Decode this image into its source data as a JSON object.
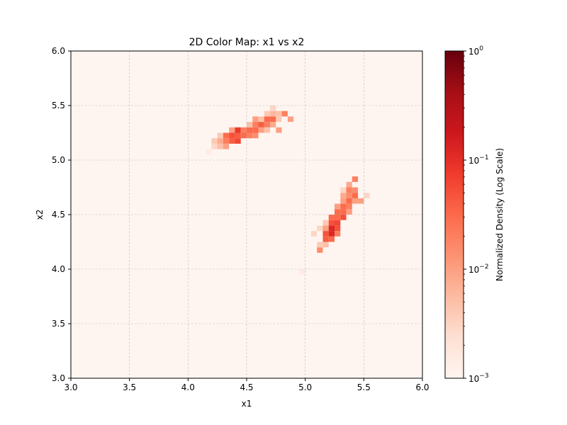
{
  "chart_data": {
    "type": "heatmap",
    "title": "2D Color Map: x1 vs x2",
    "xlabel": "x1",
    "ylabel": "x2",
    "xlim": [
      3.0,
      6.0
    ],
    "ylim": [
      3.0,
      6.0
    ],
    "x_ticks": [
      "3.0",
      "3.5",
      "4.0",
      "4.5",
      "5.0",
      "5.5",
      "6.0"
    ],
    "y_ticks": [
      "3.0",
      "3.5",
      "4.0",
      "4.5",
      "5.0",
      "5.5",
      "6.0"
    ],
    "grid": true,
    "bin_size": 0.05,
    "colormap": "Reds",
    "colorbar": {
      "label": "Normalized Density (Log Scale)",
      "scale": "log",
      "range": [
        0.001,
        1
      ],
      "tick_values": [
        0.001,
        0.01,
        0.1,
        1
      ],
      "tick_labels": [
        {
          "base": "10",
          "exp": "−3"
        },
        {
          "base": "10",
          "exp": "−2"
        },
        {
          "base": "10",
          "exp": "−1"
        },
        {
          "base": "10",
          "exp": "0"
        }
      ]
    },
    "cells": [
      [
        4.15,
        5.05,
        0.0015
      ],
      [
        4.2,
        5.1,
        0.003
      ],
      [
        4.2,
        5.15,
        0.004
      ],
      [
        4.25,
        5.1,
        0.005
      ],
      [
        4.25,
        5.15,
        0.008
      ],
      [
        4.25,
        5.2,
        0.004
      ],
      [
        4.3,
        5.1,
        0.01
      ],
      [
        4.3,
        5.15,
        0.02
      ],
      [
        4.3,
        5.2,
        0.03
      ],
      [
        4.35,
        5.15,
        0.04
      ],
      [
        4.35,
        5.2,
        0.05
      ],
      [
        4.35,
        5.25,
        0.01
      ],
      [
        4.4,
        5.15,
        0.06
      ],
      [
        4.4,
        5.2,
        0.04
      ],
      [
        4.4,
        5.25,
        0.08
      ],
      [
        4.45,
        5.2,
        0.03
      ],
      [
        4.45,
        5.25,
        0.02
      ],
      [
        4.5,
        5.2,
        0.02
      ],
      [
        4.5,
        5.25,
        0.03
      ],
      [
        4.5,
        5.3,
        0.005
      ],
      [
        4.55,
        5.2,
        0.015
      ],
      [
        4.55,
        5.25,
        0.03
      ],
      [
        4.55,
        5.3,
        0.02
      ],
      [
        4.55,
        5.35,
        0.01
      ],
      [
        4.6,
        5.25,
        0.01
      ],
      [
        4.6,
        5.3,
        0.04
      ],
      [
        4.6,
        5.35,
        0.005
      ],
      [
        4.65,
        5.25,
        0.005
      ],
      [
        4.65,
        5.3,
        0.02
      ],
      [
        4.65,
        5.35,
        0.03
      ],
      [
        4.65,
        5.4,
        0.004
      ],
      [
        4.7,
        5.3,
        0.008
      ],
      [
        4.7,
        5.35,
        0.03
      ],
      [
        4.7,
        5.4,
        0.006
      ],
      [
        4.7,
        5.45,
        0.003
      ],
      [
        4.75,
        5.25,
        0.01
      ],
      [
        4.75,
        5.35,
        0.004
      ],
      [
        4.75,
        5.4,
        0.005
      ],
      [
        4.8,
        5.4,
        0.02
      ],
      [
        4.85,
        5.35,
        0.01
      ],
      [
        4.95,
        3.95,
        0.0015
      ],
      [
        5.05,
        4.3,
        0.003
      ],
      [
        5.1,
        4.15,
        0.015
      ],
      [
        5.1,
        4.2,
        0.004
      ],
      [
        5.1,
        4.35,
        0.003
      ],
      [
        5.15,
        4.2,
        0.005
      ],
      [
        5.15,
        4.25,
        0.04
      ],
      [
        5.15,
        4.3,
        0.05
      ],
      [
        5.15,
        4.35,
        0.01
      ],
      [
        5.15,
        4.4,
        0.004
      ],
      [
        5.2,
        4.25,
        0.03
      ],
      [
        5.2,
        4.3,
        0.12
      ],
      [
        5.2,
        4.35,
        0.12
      ],
      [
        5.2,
        4.4,
        0.05
      ],
      [
        5.2,
        4.45,
        0.03
      ],
      [
        5.25,
        4.3,
        0.02
      ],
      [
        5.25,
        4.35,
        0.05
      ],
      [
        5.25,
        4.4,
        0.06
      ],
      [
        5.25,
        4.45,
        0.03
      ],
      [
        5.25,
        4.5,
        0.03
      ],
      [
        5.25,
        4.55,
        0.01
      ],
      [
        5.3,
        4.45,
        0.05
      ],
      [
        5.3,
        4.5,
        0.03
      ],
      [
        5.3,
        4.55,
        0.03
      ],
      [
        5.3,
        4.6,
        0.01
      ],
      [
        5.3,
        4.65,
        0.008
      ],
      [
        5.3,
        4.7,
        0.003
      ],
      [
        5.35,
        4.5,
        0.01
      ],
      [
        5.35,
        4.55,
        0.02
      ],
      [
        5.35,
        4.6,
        0.03
      ],
      [
        5.35,
        4.65,
        0.015
      ],
      [
        5.35,
        4.7,
        0.02
      ],
      [
        5.35,
        4.75,
        0.008
      ],
      [
        5.4,
        4.6,
        0.01
      ],
      [
        5.4,
        4.65,
        0.03
      ],
      [
        5.4,
        4.7,
        0.015
      ],
      [
        5.4,
        4.8,
        0.02
      ],
      [
        5.45,
        4.6,
        0.01
      ],
      [
        5.5,
        4.65,
        0.003
      ]
    ]
  }
}
